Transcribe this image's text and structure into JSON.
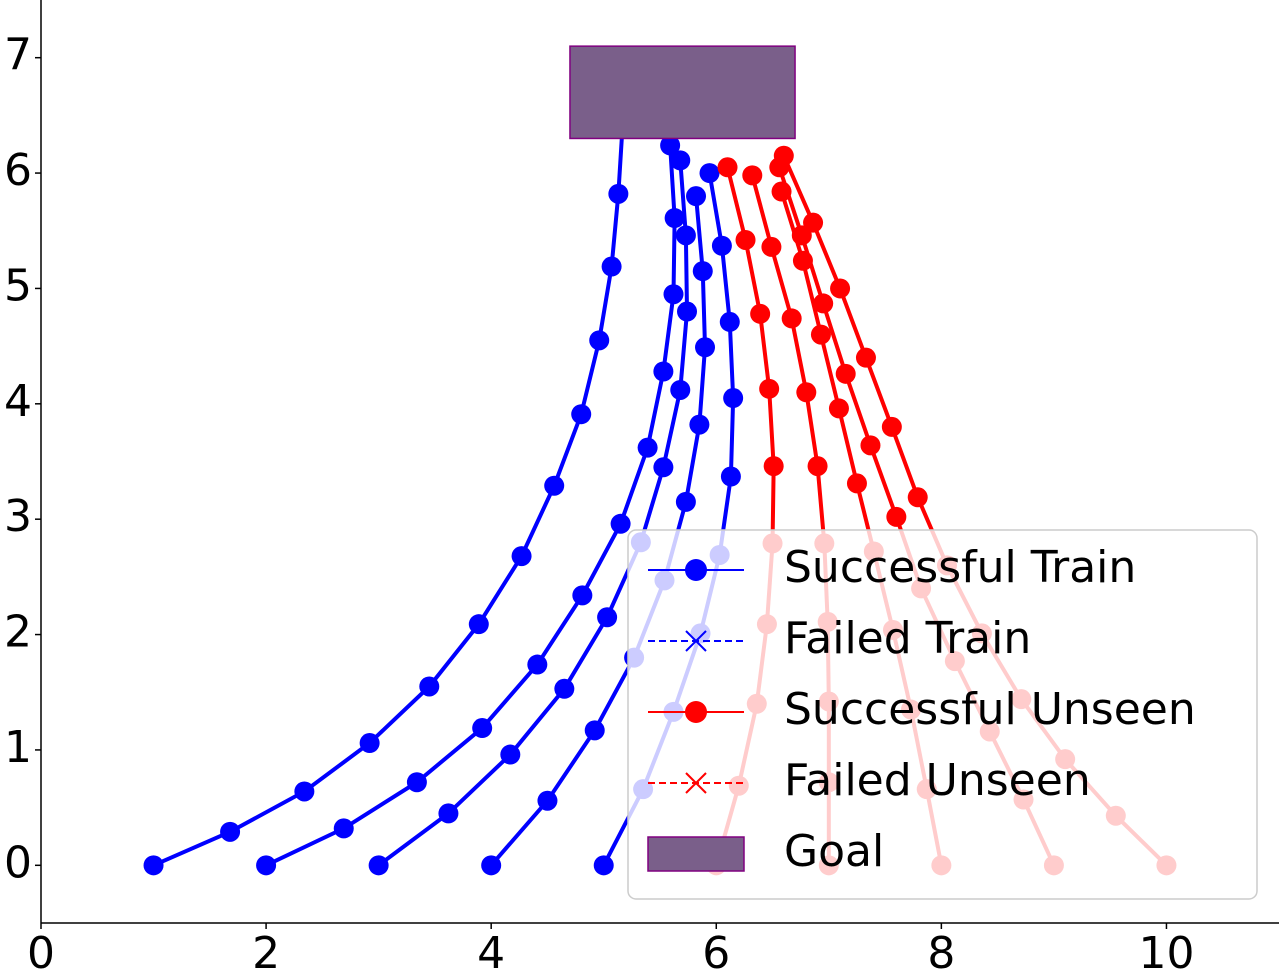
{
  "chart_data": {
    "type": "trajectory",
    "xlim": [
      0,
      11
    ],
    "ylim": [
      -0.5,
      7.5
    ],
    "xticks": [
      0,
      2,
      4,
      6,
      8,
      10
    ],
    "yticks": [
      0,
      1,
      2,
      3,
      4,
      5,
      6,
      7
    ],
    "series": [
      {
        "name": "Successful Train",
        "color": "#0000ff",
        "marker": "circle",
        "linestyle": "solid",
        "trajectories": [
          {
            "x": [
              1,
              1.68,
              2.34,
              2.92,
              3.45,
              3.89,
              4.27,
              4.56,
              4.8,
              4.96,
              5.07,
              5.13,
              5.17
            ],
            "y": [
              0,
              0.29,
              0.64,
              1.06,
              1.55,
              2.09,
              2.68,
              3.29,
              3.91,
              4.55,
              5.19,
              5.82,
              6.45
            ]
          },
          {
            "x": [
              2,
              2.69,
              3.34,
              3.92,
              4.41,
              4.81,
              5.15,
              5.39,
              5.53,
              5.62,
              5.63,
              5.59
            ],
            "y": [
              0,
              0.32,
              0.72,
              1.19,
              1.74,
              2.34,
              2.96,
              3.62,
              4.28,
              4.95,
              5.61,
              6.24
            ]
          },
          {
            "x": [
              3,
              3.62,
              4.17,
              4.65,
              5.03,
              5.33,
              5.53,
              5.68,
              5.74,
              5.73,
              5.68
            ],
            "y": [
              0,
              0.45,
              0.96,
              1.53,
              2.15,
              2.8,
              3.45,
              4.12,
              4.8,
              5.46,
              6.11
            ]
          },
          {
            "x": [
              4,
              4.5,
              4.92,
              5.27,
              5.54,
              5.73,
              5.85,
              5.9,
              5.88,
              5.82
            ],
            "y": [
              0,
              0.56,
              1.17,
              1.8,
              2.47,
              3.15,
              3.82,
              4.49,
              5.15,
              5.8
            ]
          },
          {
            "x": [
              5,
              5.35,
              5.62,
              5.86,
              6.03,
              6.13,
              6.15,
              6.12,
              6.05,
              5.94
            ],
            "y": [
              0,
              0.66,
              1.33,
              2.01,
              2.69,
              3.37,
              4.05,
              4.71,
              5.37,
              6.0
            ]
          }
        ]
      },
      {
        "name": "Failed Train",
        "color": "#0000ff",
        "marker": "x",
        "linestyle": "dashed",
        "trajectories": []
      },
      {
        "name": "Successful Unseen",
        "color": "#ff0000",
        "marker": "circle",
        "linestyle": "solid",
        "trajectories": [
          {
            "x": [
              6,
              6.2,
              6.36,
              6.45,
              6.5,
              6.51,
              6.47,
              6.39,
              6.26,
              6.1
            ],
            "y": [
              0,
              0.69,
              1.4,
              2.09,
              2.79,
              3.46,
              4.13,
              4.78,
              5.42,
              6.05
            ]
          },
          {
            "x": [
              7,
              7,
              7,
              6.99,
              6.96,
              6.9,
              6.8,
              6.67,
              6.49,
              6.32
            ],
            "y": [
              0,
              0.72,
              1.42,
              2.11,
              2.79,
              3.46,
              4.1,
              4.74,
              5.36,
              5.98
            ]
          },
          {
            "x": [
              8,
              7.87,
              7.73,
              7.57,
              7.4,
              7.25,
              7.09,
              6.93,
              6.77,
              6.58
            ],
            "y": [
              0,
              0.66,
              1.35,
              2.04,
              2.72,
              3.31,
              3.96,
              4.6,
              5.24,
              5.84
            ]
          },
          {
            "x": [
              9,
              8.73,
              8.43,
              8.12,
              7.82,
              7.6,
              7.37,
              7.15,
              6.95,
              6.76,
              6.56
            ],
            "y": [
              0,
              0.57,
              1.16,
              1.77,
              2.4,
              3.02,
              3.64,
              4.26,
              4.87,
              5.46,
              6.05
            ]
          },
          {
            "x": [
              10,
              9.55,
              9.1,
              8.71,
              8.36,
              8.05,
              7.79,
              7.56,
              7.33,
              7.1,
              6.86,
              6.6
            ],
            "y": [
              0,
              0.43,
              0.92,
              1.44,
              2.01,
              2.6,
              3.19,
              3.8,
              4.4,
              5.0,
              5.57,
              6.15
            ]
          }
        ]
      },
      {
        "name": "Failed Unseen",
        "color": "#ff0000",
        "marker": "x",
        "linestyle": "dashed",
        "trajectories": []
      }
    ],
    "goal": {
      "name": "Goal",
      "x": [
        4.7,
        6.7
      ],
      "y": [
        6.3,
        7.1
      ],
      "color": "#7a5f8a",
      "edgecolor": "#800080"
    },
    "legend": "lower right"
  }
}
